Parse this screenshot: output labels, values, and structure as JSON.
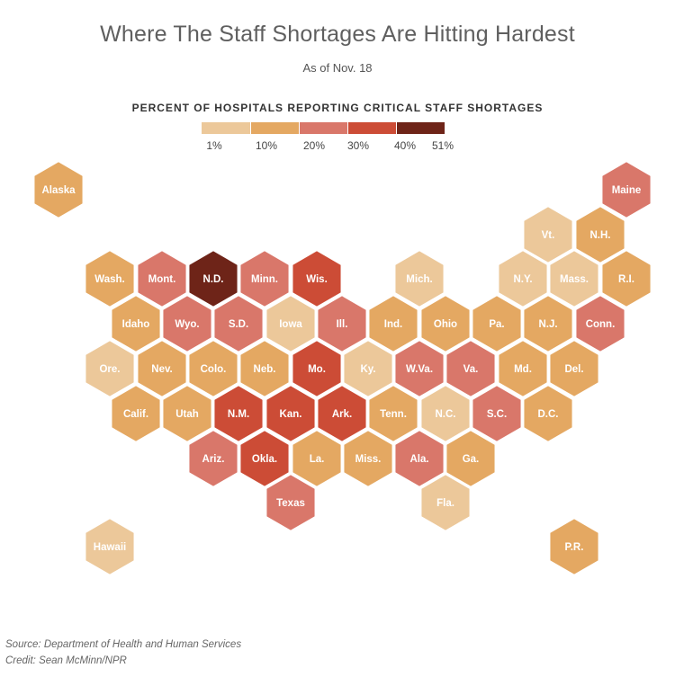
{
  "title": "Where The Staff Shortages Are Hitting Hardest",
  "subtitle": "As of Nov. 18",
  "legend": {
    "title": "PERCENT OF HOSPITALS REPORTING CRITICAL STAFF SHORTAGES",
    "ticks": [
      "1%",
      "10%",
      "20%",
      "30%",
      "40%",
      "51%"
    ],
    "bins": [
      {
        "range": "1%–10%",
        "color": "#ecc89a"
      },
      {
        "range": "10%–20%",
        "color": "#e4a862"
      },
      {
        "range": "20%–30%",
        "color": "#d9776a"
      },
      {
        "range": "30%–40%",
        "color": "#cc4c36"
      },
      {
        "range": "40%–51%",
        "color": "#6e2418"
      }
    ]
  },
  "states": [
    {
      "name": "Alaska",
      "bin": 1
    },
    {
      "name": "Maine",
      "bin": 2
    },
    {
      "name": "Vt.",
      "bin": 0
    },
    {
      "name": "N.H.",
      "bin": 1
    },
    {
      "name": "Wash.",
      "bin": 1
    },
    {
      "name": "Mont.",
      "bin": 2
    },
    {
      "name": "N.D.",
      "bin": 4
    },
    {
      "name": "Minn.",
      "bin": 2
    },
    {
      "name": "Wis.",
      "bin": 3
    },
    {
      "name": "Mich.",
      "bin": 0
    },
    {
      "name": "N.Y.",
      "bin": 0
    },
    {
      "name": "Mass.",
      "bin": 0
    },
    {
      "name": "R.I.",
      "bin": 1
    },
    {
      "name": "Idaho",
      "bin": 1
    },
    {
      "name": "Wyo.",
      "bin": 2
    },
    {
      "name": "S.D.",
      "bin": 2
    },
    {
      "name": "Iowa",
      "bin": 0
    },
    {
      "name": "Ill.",
      "bin": 2
    },
    {
      "name": "Ind.",
      "bin": 1
    },
    {
      "name": "Ohio",
      "bin": 1
    },
    {
      "name": "Pa.",
      "bin": 1
    },
    {
      "name": "N.J.",
      "bin": 1
    },
    {
      "name": "Conn.",
      "bin": 2
    },
    {
      "name": "Ore.",
      "bin": 0
    },
    {
      "name": "Nev.",
      "bin": 1
    },
    {
      "name": "Colo.",
      "bin": 1
    },
    {
      "name": "Neb.",
      "bin": 1
    },
    {
      "name": "Mo.",
      "bin": 3
    },
    {
      "name": "Ky.",
      "bin": 0
    },
    {
      "name": "W.Va.",
      "bin": 2
    },
    {
      "name": "Va.",
      "bin": 2
    },
    {
      "name": "Md.",
      "bin": 1
    },
    {
      "name": "Del.",
      "bin": 1
    },
    {
      "name": "Calif.",
      "bin": 1
    },
    {
      "name": "Utah",
      "bin": 1
    },
    {
      "name": "N.M.",
      "bin": 3
    },
    {
      "name": "Kan.",
      "bin": 3
    },
    {
      "name": "Ark.",
      "bin": 3
    },
    {
      "name": "Tenn.",
      "bin": 1
    },
    {
      "name": "N.C.",
      "bin": 0
    },
    {
      "name": "S.C.",
      "bin": 2
    },
    {
      "name": "D.C.",
      "bin": 1
    },
    {
      "name": "Ariz.",
      "bin": 2
    },
    {
      "name": "Okla.",
      "bin": 3
    },
    {
      "name": "La.",
      "bin": 1
    },
    {
      "name": "Miss.",
      "bin": 1
    },
    {
      "name": "Ala.",
      "bin": 2
    },
    {
      "name": "Ga.",
      "bin": 1
    },
    {
      "name": "Texas",
      "bin": 2
    },
    {
      "name": "Fla.",
      "bin": 0
    },
    {
      "name": "Hawaii",
      "bin": 0
    },
    {
      "name": "P.R.",
      "bin": 1
    }
  ],
  "source": "Source: Department of Health and Human Services",
  "credit": "Credit: Sean McMinn/NPR"
}
